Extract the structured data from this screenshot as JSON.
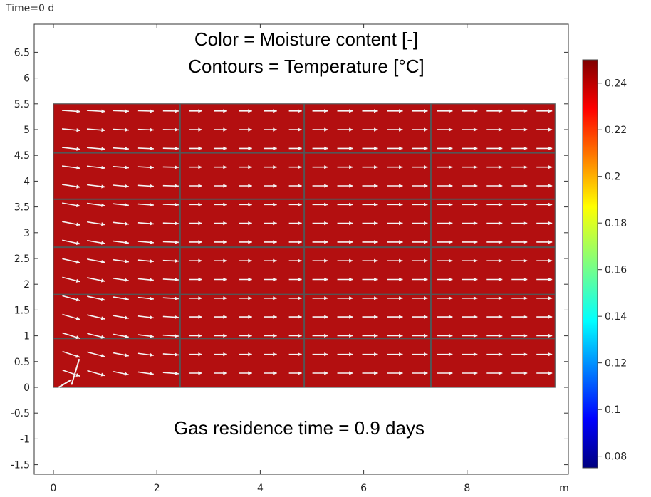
{
  "time_label": "Time=0 d",
  "chart_data": {
    "type": "heatmap",
    "title": "Color = Moisture content [-]",
    "subtitle": "Contours = Temperature [°C]",
    "annotation": "Gas residence time = 0.9 days",
    "x_unit": "m",
    "xlim": [
      -0.2,
      10.1
    ],
    "ylim": [
      -1.8,
      7.0
    ],
    "x_ticks": [
      "0",
      "2",
      "4",
      "6",
      "8"
    ],
    "x_tick_values": [
      0,
      2,
      4,
      6,
      8
    ],
    "y_ticks": [
      "-1.5",
      "-1",
      "-0.5",
      "0",
      "0.5",
      "1",
      "1.5",
      "2",
      "2.5",
      "3",
      "3.5",
      "4",
      "4.5",
      "5",
      "5.5",
      "6",
      "6.5"
    ],
    "y_tick_values": [
      -1.5,
      -1,
      -0.5,
      0,
      0.5,
      1,
      1.5,
      2,
      2.5,
      3,
      3.5,
      4,
      4.5,
      5,
      5.5,
      6,
      6.5
    ],
    "domain": {
      "x": [
        0,
        9.7
      ],
      "y": [
        0,
        5.5
      ]
    },
    "field_value": 0.25,
    "field_color": "#b30f10",
    "grid_lines": {
      "x": [
        2.45,
        4.85,
        7.3
      ],
      "y": [
        0.95,
        1.8,
        2.72,
        3.65,
        4.55
      ]
    },
    "colorbar": {
      "min": 0.075,
      "max": 0.25,
      "ticks": [
        "0.24",
        "0.22",
        "0.2",
        "0.18",
        "0.16",
        "0.14",
        "0.12",
        "0.1",
        "0.08"
      ],
      "tick_values": [
        0.24,
        0.22,
        0.2,
        0.18,
        0.16,
        0.14,
        0.12,
        0.1,
        0.08
      ],
      "colormap": "jet"
    }
  }
}
